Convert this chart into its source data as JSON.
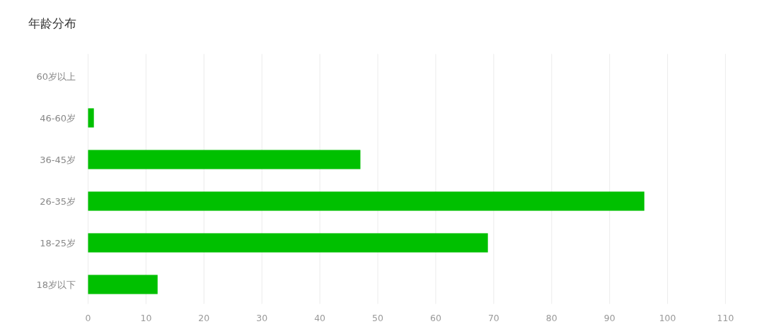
{
  "chart_data": {
    "type": "bar",
    "orientation": "horizontal",
    "title": "年龄分布",
    "categories": [
      "60岁以上",
      "46-60岁",
      "36-45岁",
      "26-35岁",
      "18-25岁",
      "18岁以下"
    ],
    "values": [
      0,
      1,
      47,
      96,
      69,
      12
    ],
    "color": "#00c000",
    "xlim": [
      0,
      110
    ],
    "xticks": [
      0,
      10,
      20,
      30,
      40,
      50,
      60,
      70,
      80,
      90,
      100,
      110
    ],
    "grid": "x"
  }
}
